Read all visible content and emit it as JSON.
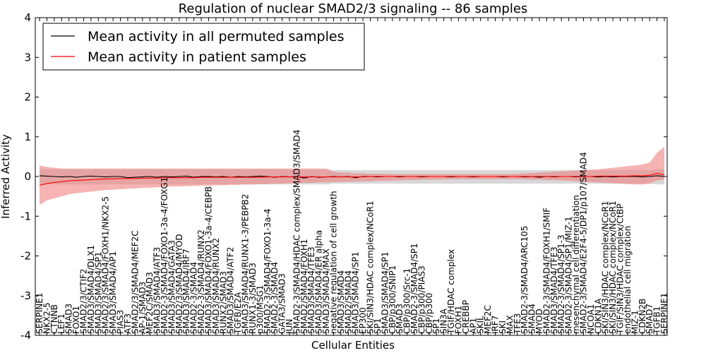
{
  "chart_data": {
    "type": "line",
    "title": "Regulation of nuclear SMAD2/3 signaling -- 86 samples",
    "xlabel": "Cellular Entities",
    "ylabel": "Inferred Activity",
    "ylim": [
      -4,
      4
    ],
    "yticks": [
      -4,
      -3,
      -2,
      -1,
      0,
      1,
      2,
      3,
      4
    ],
    "legend_position": "top-left",
    "categories": [
      "SERPINE1",
      "NKX2-5",
      "CTNNB",
      "LEF1",
      "SMAD3",
      "FOXO1",
      "SMAD2/3/CTIF2",
      "SMAD3/SMAD4/DLX1",
      "SMAD3/SMAD4/SP1",
      "SMAD2/3/SMAD4/FOXH1/NKX2-5",
      "SMAD3/SMAD4/AP1",
      "PIAS3",
      "ATF3",
      "SMAD2/3/SMAD4/MEF2C",
      "AP-1/SMAD3",
      "MEF2C/SMAD3",
      "SMAD3/SMAD4/ATF3",
      "SMAD2-3/SMAD4/FOXO1-3a-4/FOXG1",
      "SMAD3/SMAD4/GATA3",
      "SMAD2/3/SMAD4/MYOD",
      "SMAD3/SMAD4/IRF7",
      "SMAD2-3/SMAD4",
      "SMAD2-3/SMAD4/RUNX2",
      "SMAD3/SMAD4/FOXO1-3a-4/CEBPB",
      "SMAD3/SMAD4/RUNX2",
      "RUNX2/SMAD3",
      "SMAD3/SMAD4/ATF2",
      "TGFB/E2A",
      "SMAD3/SMAD4/RUNX1-3/PEBPB2",
      "RUNX1-3/SMAD3",
      "p300/MSG1",
      "SMAD2-3/SMAD4/FOXO1-3a-4",
      "SMAD2-3/SMAD4",
      "GATA3/SMAD3",
      "JUN",
      "SMAD2-3/SMAD4/HDAC complex/SMAD3/SMAD4",
      "SMAD2/SMAD4/FOXH1",
      "SMAD3/SMAD4/TFE3",
      "SMAD3/SMAD4/ER alpha",
      "SMAD3/SMAD4/MAX",
      "negative regulation of cell growth",
      "SMAD3/SMAD4",
      "SMAD2/SMAD4",
      "SMAD3/SMAD4/SP1",
      "EP300",
      "SKI/SIN3/HDAC complex/NCoR1",
      "SP1",
      "SMAD3/SMAD4/SP1",
      "CBP/p300/SNIP1",
      "SMAD3",
      "CBP/p300/Src-1",
      "SMAD2-3/SMAD4/SP1",
      "CBP/p300/PIAS3",
      "CBP/p300",
      "SP1",
      "SIN3A",
      "TGIF/HDAC complex",
      "FOXH1",
      "CREBBP",
      "AP1",
      "SKIL",
      "MEF2C",
      "IRF7",
      "SKI",
      "MAX",
      "TFE3",
      "SMAD2-3/SMAD4/ARC105",
      "SMAD4",
      "MYOD",
      "SMAD2-3/SMAD4/FOXH1/SMIF",
      "SMAD3/SMAD4/TFE3",
      "SMAD2-3/SMAD4/SP1-3",
      "SMAD2-3/SMAD4/SP1/MIZ-1",
      "mesenchymal cell differentiation",
      "SMAD2-3/SMAD4/E2F4-5/DP1/p107/SMAD4",
      "NCOA1",
      "CDKN1A",
      "SKI/SIN3/HDAC complex/NCoR1",
      "SKI/SIN3/HDAC complex/NCoR1",
      "TGIF/SIN3/HDAC complex/CtBP",
      "endothelial cell migration",
      "MIZ-1",
      "CDKN2B",
      "SMAD7",
      "TGFB1",
      "SERPINE1"
    ],
    "series": [
      {
        "name": "Mean activity in all permuted samples",
        "color": "#000000",
        "band_color": "#a8a8a8",
        "values": [
          0.02,
          0.01,
          0.0,
          -0.01,
          0.0,
          -0.02,
          0.0,
          0.01,
          0.0,
          -0.01,
          0.0,
          0.0,
          -0.03,
          -0.02,
          -0.01,
          0.0,
          -0.02,
          0.0,
          -0.01,
          0.0,
          0.01,
          -0.02,
          0.0,
          0.0,
          -0.01,
          0.0,
          -0.02,
          0.0,
          -0.01,
          0.0,
          0.01,
          0.0,
          -0.02,
          0.0,
          -0.01,
          0.0,
          -0.04,
          0.0,
          -0.02,
          -0.01,
          0.0,
          -0.01,
          0.0,
          -0.03,
          0.0,
          0.0,
          -0.01,
          0.0,
          0.0,
          -0.01,
          0.0,
          0.0,
          -0.01,
          0.0,
          0.0,
          0.0,
          -0.01,
          0.0,
          0.0,
          -0.01,
          0.0,
          0.0,
          0.0,
          -0.01,
          0.0,
          0.0,
          -0.01,
          0.0,
          -0.02,
          0.0,
          -0.01,
          0.0,
          0.0,
          -0.01,
          0.0,
          0.0,
          -0.01,
          0.0,
          -0.01,
          0.0,
          0.0,
          0.0,
          -0.01,
          0.0,
          0.02,
          0.0
        ],
        "band_lower": [
          -0.22,
          -0.2,
          -0.2,
          -0.2,
          -0.2,
          -0.2,
          -0.2,
          -0.2,
          -0.2,
          -0.2,
          -0.2,
          -0.2,
          -0.2,
          -0.2,
          -0.2,
          -0.2,
          -0.2,
          -0.2,
          -0.2,
          -0.2,
          -0.2,
          -0.2,
          -0.2,
          -0.2,
          -0.2,
          -0.2,
          -0.2,
          -0.2,
          -0.2,
          -0.2,
          -0.2,
          -0.2,
          -0.2,
          -0.2,
          -0.2,
          -0.2,
          -0.2,
          -0.2,
          -0.2,
          -0.2,
          -0.18,
          -0.18,
          -0.18,
          -0.18,
          -0.18,
          -0.18,
          -0.18,
          -0.18,
          -0.18,
          -0.18,
          -0.18,
          -0.18,
          -0.18,
          -0.18,
          -0.18,
          -0.18,
          -0.18,
          -0.18,
          -0.18,
          -0.18,
          -0.18,
          -0.18,
          -0.18,
          -0.18,
          -0.18,
          -0.18,
          -0.18,
          -0.18,
          -0.18,
          -0.18,
          -0.18,
          -0.18,
          -0.18,
          -0.18,
          -0.18,
          -0.18,
          -0.18,
          -0.18,
          -0.18,
          -0.18,
          -0.18,
          -0.18,
          -0.18,
          -0.18,
          -0.2,
          -0.2
        ],
        "band_upper": [
          0.18,
          0.18,
          0.18,
          0.18,
          0.18,
          0.18,
          0.18,
          0.18,
          0.18,
          0.18,
          0.18,
          0.18,
          0.18,
          0.18,
          0.18,
          0.18,
          0.18,
          0.18,
          0.18,
          0.18,
          0.18,
          0.18,
          0.18,
          0.18,
          0.18,
          0.18,
          0.18,
          0.18,
          0.18,
          0.18,
          0.18,
          0.18,
          0.18,
          0.18,
          0.18,
          0.18,
          0.18,
          0.18,
          0.18,
          0.18,
          0.16,
          0.16,
          0.16,
          0.16,
          0.16,
          0.16,
          0.16,
          0.16,
          0.16,
          0.16,
          0.16,
          0.16,
          0.16,
          0.16,
          0.16,
          0.16,
          0.16,
          0.16,
          0.16,
          0.16,
          0.16,
          0.16,
          0.16,
          0.16,
          0.16,
          0.16,
          0.16,
          0.16,
          0.16,
          0.16,
          0.16,
          0.16,
          0.16,
          0.16,
          0.16,
          0.16,
          0.16,
          0.16,
          0.16,
          0.16,
          0.16,
          0.16,
          0.16,
          0.16,
          0.18,
          0.18
        ]
      },
      {
        "name": "Mean activity in patient samples",
        "color": "#ff0000",
        "band_color": "#f08080",
        "values": [
          -0.22,
          -0.18,
          -0.15,
          -0.13,
          -0.11,
          -0.1,
          -0.09,
          -0.08,
          -0.07,
          -0.06,
          -0.06,
          -0.05,
          -0.05,
          -0.05,
          -0.04,
          -0.04,
          -0.04,
          -0.03,
          -0.03,
          -0.03,
          -0.03,
          -0.03,
          -0.02,
          -0.02,
          -0.02,
          -0.02,
          -0.02,
          -0.02,
          -0.02,
          -0.02,
          -0.02,
          -0.01,
          -0.01,
          -0.01,
          -0.01,
          -0.01,
          -0.01,
          -0.01,
          -0.01,
          -0.01,
          -0.01,
          -0.01,
          -0.01,
          -0.01,
          -0.01,
          0.0,
          0.0,
          0.0,
          0.0,
          0.0,
          0.0,
          0.0,
          0.0,
          0.0,
          0.0,
          0.0,
          0.0,
          0.0,
          0.0,
          0.0,
          0.0,
          0.0,
          0.0,
          0.0,
          0.0,
          0.0,
          0.0,
          0.0,
          0.0,
          0.0,
          0.0,
          0.0,
          0.0,
          0.0,
          0.0,
          0.0,
          0.01,
          0.01,
          0.01,
          0.01,
          0.01,
          0.02,
          0.02,
          0.03,
          0.08,
          0.04
        ],
        "band_lower": [
          -0.72,
          -0.6,
          -0.55,
          -0.5,
          -0.45,
          -0.42,
          -0.4,
          -0.38,
          -0.36,
          -0.34,
          -0.33,
          -0.32,
          -0.31,
          -0.3,
          -0.29,
          -0.28,
          -0.27,
          -0.26,
          -0.25,
          -0.25,
          -0.24,
          -0.24,
          -0.23,
          -0.23,
          -0.22,
          -0.22,
          -0.21,
          -0.21,
          -0.2,
          -0.2,
          -0.19,
          -0.19,
          -0.18,
          -0.18,
          -0.17,
          -0.17,
          -0.16,
          -0.16,
          -0.15,
          -0.15,
          -0.14,
          -0.14,
          -0.13,
          -0.13,
          -0.12,
          -0.12,
          -0.11,
          -0.11,
          -0.1,
          -0.1,
          -0.09,
          -0.09,
          -0.08,
          -0.08,
          -0.08,
          -0.07,
          -0.07,
          -0.07,
          -0.07,
          -0.07,
          -0.07,
          -0.07,
          -0.07,
          -0.07,
          -0.07,
          -0.07,
          -0.07,
          -0.08,
          -0.08,
          -0.09,
          -0.09,
          -0.1,
          -0.11,
          -0.12,
          -0.13,
          -0.14,
          -0.15,
          -0.16,
          -0.17,
          -0.18,
          -0.19,
          -0.2,
          -0.2,
          -0.18,
          -0.1,
          -0.08
        ],
        "band_upper": [
          0.28,
          0.24,
          0.22,
          0.2,
          0.2,
          0.2,
          0.2,
          0.2,
          0.2,
          0.2,
          0.2,
          0.2,
          0.2,
          0.2,
          0.2,
          0.2,
          0.2,
          0.2,
          0.2,
          0.2,
          0.2,
          0.2,
          0.2,
          0.2,
          0.2,
          0.2,
          0.2,
          0.2,
          0.2,
          0.2,
          0.2,
          0.2,
          0.2,
          0.2,
          0.2,
          0.2,
          0.2,
          0.2,
          0.2,
          0.2,
          0.12,
          0.1,
          0.1,
          0.08,
          0.08,
          0.07,
          0.07,
          0.07,
          0.06,
          0.06,
          0.06,
          0.06,
          0.06,
          0.06,
          0.06,
          0.06,
          0.06,
          0.06,
          0.06,
          0.06,
          0.06,
          0.06,
          0.06,
          0.06,
          0.06,
          0.07,
          0.08,
          0.09,
          0.1,
          0.11,
          0.12,
          0.13,
          0.14,
          0.15,
          0.16,
          0.17,
          0.18,
          0.2,
          0.22,
          0.24,
          0.26,
          0.28,
          0.3,
          0.35,
          0.6,
          0.75
        ]
      }
    ]
  }
}
